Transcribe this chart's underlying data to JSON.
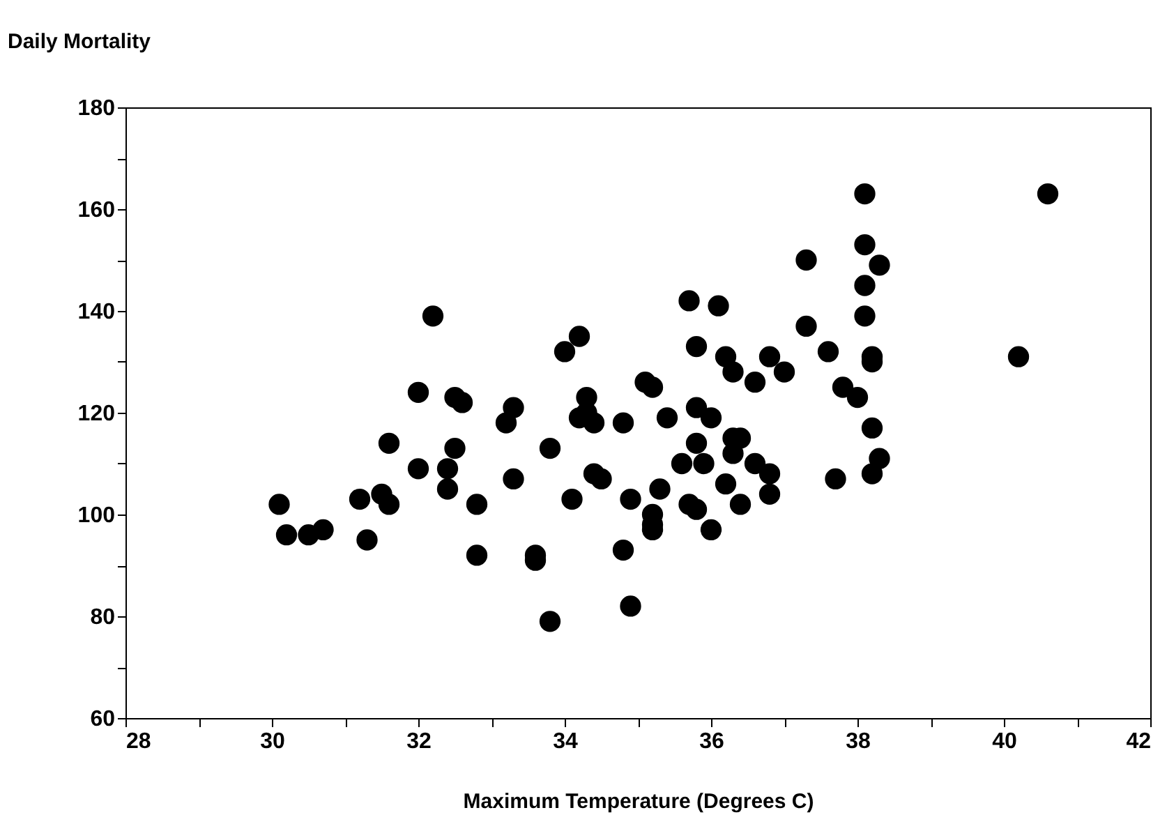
{
  "chart_data": {
    "type": "scatter",
    "ylabel": "Daily Mortality",
    "xlabel": "Maximum Temperature (Degrees C)",
    "xlim": [
      28,
      42
    ],
    "ylim": [
      60,
      180
    ],
    "xticks": [
      28,
      {
        "value": 29,
        "label": null
      },
      30,
      {
        "value": 31,
        "label": null
      },
      32,
      {
        "value": 33,
        "label": null
      },
      34,
      {
        "value": 35,
        "label": null
      },
      36,
      {
        "value": 37,
        "label": null
      },
      38,
      {
        "value": 39,
        "label": null
      },
      40,
      {
        "value": 41,
        "label": null
      },
      42
    ],
    "yticks": [
      60,
      {
        "value": 70,
        "label": null
      },
      80,
      {
        "value": 90,
        "label": null
      },
      100,
      {
        "value": 110,
        "label": null
      },
      120,
      {
        "value": 130,
        "label": null
      },
      140,
      {
        "value": 150,
        "label": null
      },
      160,
      {
        "value": 170,
        "label": null
      },
      180
    ],
    "grid": false,
    "marker": "circle",
    "series": [
      {
        "color": "#000000",
        "x": [
          30.1,
          30.2,
          30.5,
          30.7,
          31.2,
          31.3,
          31.5,
          31.6,
          31.6,
          32.0,
          32.0,
          32.2,
          32.4,
          32.4,
          32.5,
          32.6,
          32.5,
          32.8,
          32.8,
          33.2,
          33.3,
          33.3,
          33.6,
          33.6,
          33.8,
          33.8,
          34.0,
          34.1,
          34.2,
          34.2,
          34.3,
          34.3,
          34.4,
          34.4,
          34.5,
          34.8,
          34.8,
          34.9,
          34.9,
          35.1,
          35.2,
          35.2,
          35.2,
          35.2,
          35.3,
          35.4,
          35.6,
          35.7,
          35.7,
          35.8,
          35.8,
          35.8,
          35.8,
          35.9,
          36.0,
          36.0,
          36.1,
          36.2,
          36.2,
          36.3,
          36.3,
          36.3,
          36.4,
          36.4,
          36.6,
          36.6,
          36.8,
          36.8,
          36.8,
          37.0,
          37.3,
          37.3,
          37.6,
          37.8,
          38.0,
          37.7,
          38.1,
          38.1,
          38.1,
          38.1,
          38.2,
          38.2,
          38.3,
          38.2,
          38.3,
          38.2,
          40.2,
          40.6
        ],
        "values": [
          102,
          96,
          96,
          97,
          103,
          95,
          104,
          102,
          114,
          124,
          109,
          139,
          109,
          105,
          123,
          122,
          113,
          102,
          92,
          118,
          121,
          107,
          92,
          91,
          113,
          79,
          132,
          103,
          135,
          119,
          123,
          120,
          118,
          108,
          107,
          118,
          93,
          103,
          82,
          126,
          125,
          100,
          98,
          97,
          105,
          119,
          110,
          142,
          102,
          133,
          121,
          114,
          101,
          110,
          119,
          97,
          141,
          131,
          106,
          128,
          115,
          112,
          115,
          102,
          126,
          110,
          131,
          108,
          104,
          128,
          150,
          137,
          132,
          125,
          123,
          107,
          163,
          153,
          145,
          139,
          131,
          130,
          149,
          117,
          111,
          108,
          131,
          163
        ]
      }
    ]
  }
}
